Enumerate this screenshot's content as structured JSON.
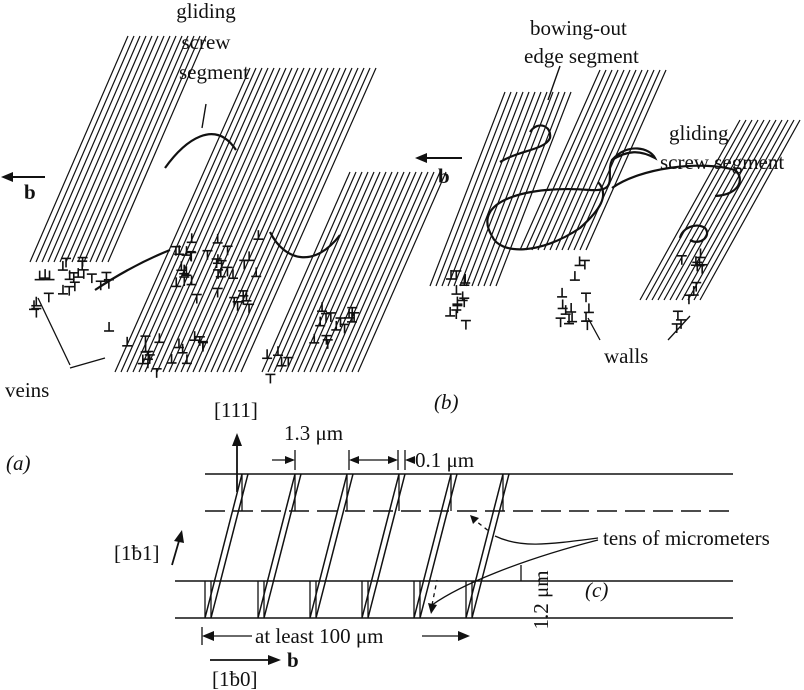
{
  "panel_a": {
    "label": "(a)",
    "burgers_vector": "b",
    "gliding_screw_segment": [
      "gliding",
      "screw",
      "segment"
    ],
    "veins": "veins"
  },
  "panel_b": {
    "label": "(b)",
    "burgers_vector": "b",
    "bowing_out_edge_segment": [
      "bowing-out",
      "edge segment"
    ],
    "gliding_screw_segment": [
      "gliding",
      "screw segment"
    ],
    "walls": "walls"
  },
  "panel_c": {
    "label": "(c)",
    "direction_111": "[111]",
    "direction_121": "[1ƀ1]",
    "direction_101": "[1ƀ0]",
    "burgers_vector": "b",
    "spacing": "1.3 μm",
    "wall_thickness": "0.1 μm",
    "depth": "tens of micrometers",
    "height": "1.2 μm",
    "length": "at least 100 μm"
  }
}
